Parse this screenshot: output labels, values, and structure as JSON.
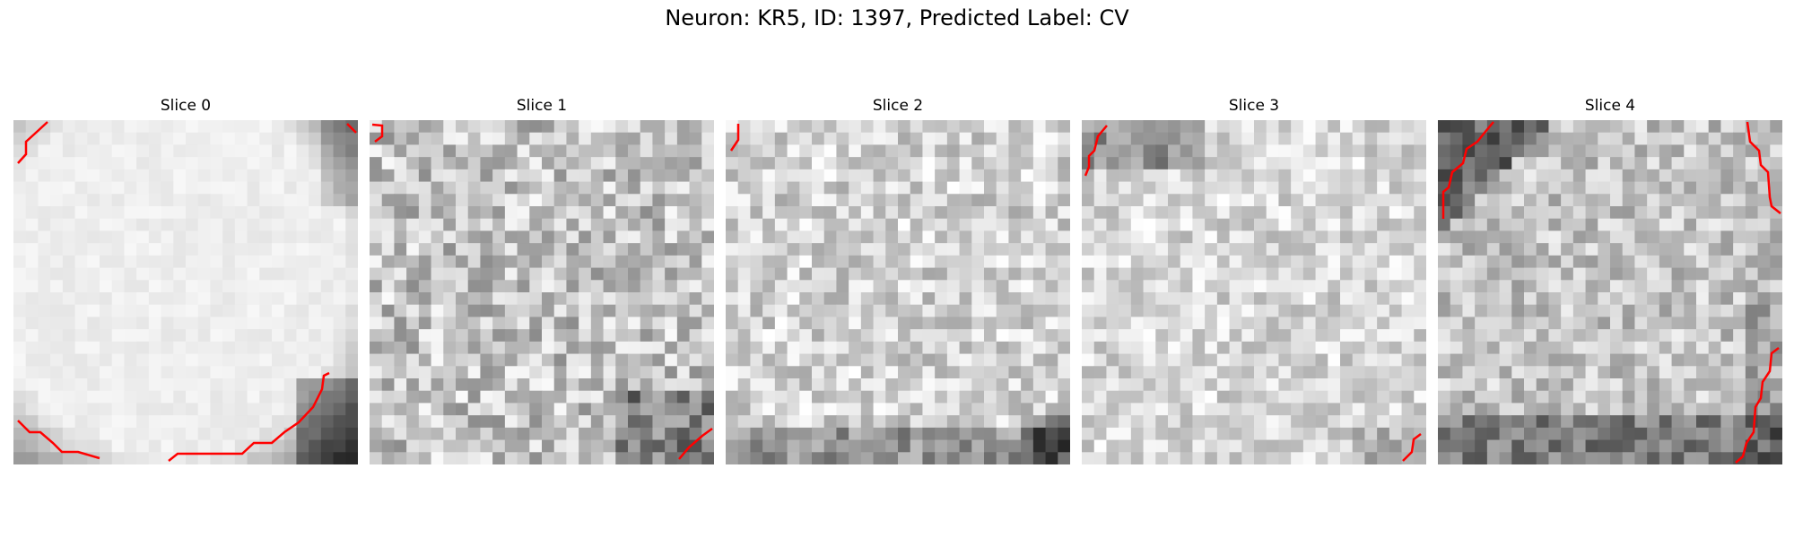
{
  "figure": {
    "title": "Neuron: KR5, ID: 1397, Predicted Label: CV"
  },
  "slices": [
    {
      "title": "Slice 0",
      "description": "Bright uniform neuron soma filling most of the tile; dark membrane region at right and lower-right; red contour segments at top-left, top-right corner, bottom-left and along the bottom-right edge"
    },
    {
      "title": "Slice 1",
      "description": "Mottled gray texture with darker patches at lower right; small red contour at top-left corner and a red segment at bottom-right"
    },
    {
      "title": "Slice 2",
      "description": "Light mottled gray texture with dark pixels at the lower edge; small red contour at top-left and tiny red tick at bottom-right"
    },
    {
      "title": "Slice 3",
      "description": "Light gray mottled texture with dark spots near the top-left; red contour at top-left and a short red segment at bottom-right"
    },
    {
      "title": "Slice 4",
      "description": "Gray textured tile with dark band at top-left and along the bottom; red contours along the top-left, upper-right and lower-right edges"
    }
  ],
  "colors": {
    "contour": "#ff0000",
    "background": "#ffffff"
  }
}
